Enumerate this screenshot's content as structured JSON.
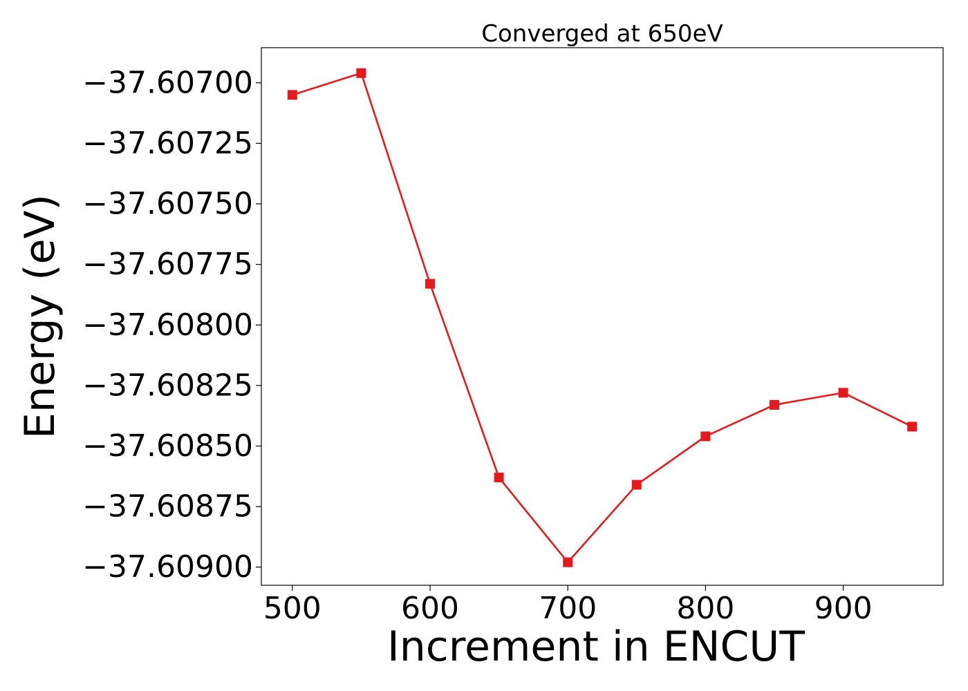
{
  "chart_data": {
    "type": "line",
    "title": "Converged at 650eV",
    "xlabel": "Increment in ENCUT",
    "ylabel": "Energy (eV)",
    "x": [
      500,
      550,
      600,
      650,
      700,
      750,
      800,
      850,
      900,
      950
    ],
    "series": [
      {
        "values": [
          -37.60705,
          -37.60696,
          -37.60783,
          -37.60863,
          -37.60898,
          -37.60866,
          -37.60846,
          -37.60833,
          -37.60828,
          -37.60842
        ],
        "color": "#e41a1c",
        "marker": "square"
      }
    ],
    "xticks": [
      500,
      600,
      700,
      800,
      900
    ],
    "xtick_labels": [
      "500",
      "600",
      "700",
      "800",
      "900"
    ],
    "yticks": [
      -37.607,
      -37.60725,
      -37.6075,
      -37.60775,
      -37.608,
      -37.60825,
      -37.6085,
      -37.60875,
      -37.609
    ],
    "ytick_labels": [
      "−37.60700",
      "−37.60725",
      "−37.60750",
      "−37.60775",
      "−37.60800",
      "−37.60825",
      "−37.60850",
      "−37.60875",
      "−37.60900"
    ],
    "xlim": [
      477.5,
      972.5
    ],
    "ylim": [
      -37.609075,
      -37.606855
    ],
    "grid": false,
    "legend": "none"
  }
}
